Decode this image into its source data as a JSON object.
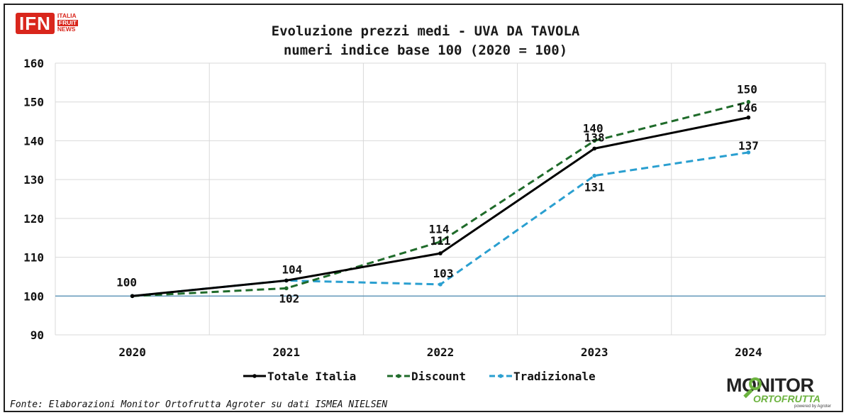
{
  "logo": {
    "ifn_text": "IFN",
    "ifn_sub": [
      "ITALIA",
      "FRUIT",
      "NEWS"
    ]
  },
  "title_line1": "Evoluzione prezzi medi - UVA DA TAVOLA",
  "title_line2": "numeri indice base 100 (2020 = 100)",
  "source": "Fonte: Elaborazioni Monitor Ortofrutta Agroter su dati ISMEA NIELSEN",
  "brand": {
    "top": "MONITOR",
    "bottom": "ORTOFRUTTA",
    "powered": "powered by Agroter"
  },
  "colors": {
    "totale": "#000000",
    "discount": "#1f6b2a",
    "tradizionale": "#2a9fd0",
    "baseline": "#4a8ab0",
    "grid": "#d9d9d9"
  },
  "chart_data": {
    "type": "line",
    "title": "Evoluzione prezzi medi - UVA DA TAVOLA",
    "subtitle": "numeri indice base 100 (2020 = 100)",
    "categories": [
      "2020",
      "2021",
      "2022",
      "2023",
      "2024"
    ],
    "ylim": [
      90,
      160
    ],
    "yticks": [
      90,
      100,
      110,
      120,
      130,
      140,
      150,
      160
    ],
    "grid": true,
    "legend": "bottom",
    "baseline": 100,
    "series": [
      {
        "name": "Totale Italia",
        "style": "solid",
        "values": [
          100,
          104,
          111,
          138,
          146
        ],
        "value_labels": [
          "100",
          "104",
          "111",
          "138",
          "146"
        ]
      },
      {
        "name": "Discount",
        "style": "dashed",
        "values": [
          100,
          102,
          114,
          140,
          150
        ],
        "value_labels": [
          "",
          "102",
          "114",
          "140",
          "150"
        ]
      },
      {
        "name": "Tradizionale",
        "style": "dashed",
        "values": [
          100,
          104,
          103,
          131,
          137
        ],
        "value_labels": [
          "",
          "",
          "103",
          "131",
          "137"
        ]
      }
    ]
  }
}
